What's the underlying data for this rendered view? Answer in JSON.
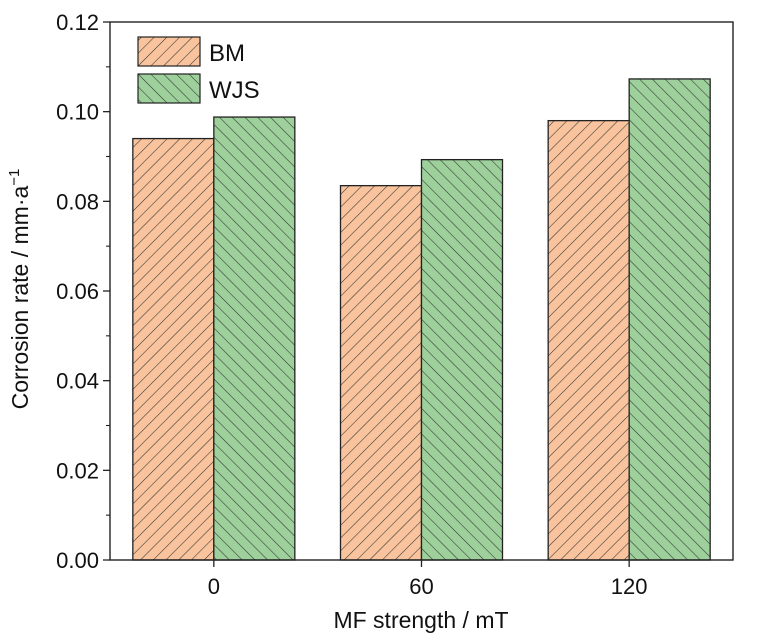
{
  "chart_data": {
    "type": "bar",
    "categories": [
      "0",
      "60",
      "120"
    ],
    "series": [
      {
        "name": "BM",
        "values": [
          0.094,
          0.0835,
          0.098
        ],
        "color": "#F9C49D",
        "hatch": "forward-diagonal"
      },
      {
        "name": "WJS",
        "values": [
          0.0988,
          0.0893,
          0.1073
        ],
        "color": "#9DD09B",
        "hatch": "back-diagonal"
      }
    ],
    "xlabel": "MF strength / mT",
    "ylabel": "Corrosion rate / mm·a",
    "ylabel_superscript": "−1",
    "ylim": [
      0,
      0.12
    ],
    "yticks": [
      "0.00",
      "0.02",
      "0.04",
      "0.06",
      "0.08",
      "0.10",
      "0.12"
    ],
    "grid": false,
    "legend_position": "top-left"
  }
}
